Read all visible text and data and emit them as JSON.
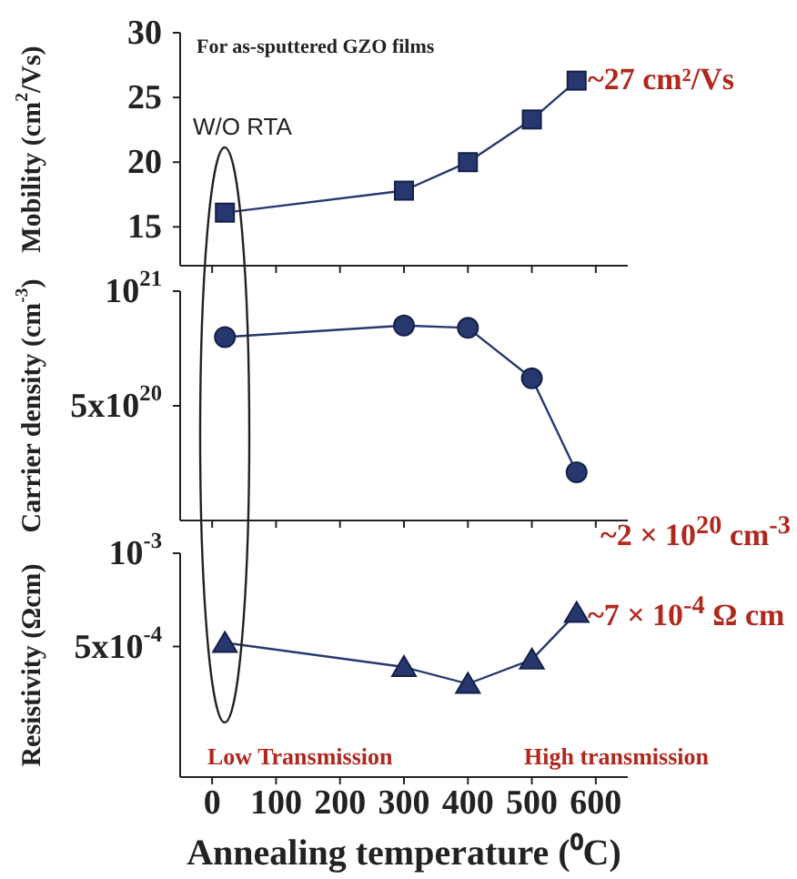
{
  "chart_data": [
    {
      "type": "line",
      "ylabel": "Mobility (cm$^{2}$/Vs)",
      "x": [
        20,
        300,
        400,
        500,
        570
      ],
      "xlim": [
        -50,
        650
      ],
      "xticks": [
        0,
        100,
        200,
        300,
        400,
        500,
        600
      ],
      "ylim": [
        12,
        30
      ],
      "yticks": [
        15,
        20,
        25,
        30
      ],
      "tick_labels": "y",
      "marker": "square",
      "series": [
        {
          "color": "#27386e",
          "values": [
            16.1,
            17.8,
            20,
            23.3,
            26.3
          ]
        }
      ],
      "annotations": [
        "For as-sputtered GZO films",
        "W/O RTA",
        "~27 cm²/Vs"
      ]
    },
    {
      "type": "line",
      "ylabel": "Carrier density (cm$^{-3}$)",
      "x": [
        20,
        300,
        400,
        500,
        570
      ],
      "xlim": [
        -50,
        650
      ],
      "xticks": [
        0,
        100,
        200,
        300,
        400,
        500,
        600
      ],
      "ylim": [
        0,
        1e+21
      ],
      "yticks": [
        {
          "value": 1e+21,
          "label": "10$^{21}$"
        },
        {
          "value": 5e+20,
          "label": "5x10$^{20}$"
        }
      ],
      "tick_labels": "y",
      "marker": "circle",
      "series": [
        {
          "color": "#27386e",
          "values": [
            8e+20,
            8.5e+20,
            8.4e+20,
            6.2e+20,
            2.1e+20
          ]
        }
      ],
      "annotations": [
        "~2 × 10$^{20}$ cm$^{-3}$"
      ]
    },
    {
      "type": "line",
      "ylabel": "Resistivity (Ωcm)",
      "xlabel": "Annealing temperature (⁰C)",
      "x": [
        20,
        300,
        400,
        500,
        570
      ],
      "xlim": [
        -50,
        650
      ],
      "xticks": [
        0,
        100,
        200,
        300,
        400,
        500,
        600
      ],
      "ylim": [
        -0.0002,
        0.001
      ],
      "yticks": [
        {
          "value": 0.001,
          "label": "10$^{-3}$"
        },
        {
          "value": 0.0005,
          "label": "5x10$^{-4}$"
        }
      ],
      "marker": "triangle",
      "series": [
        {
          "color": "#27386e",
          "values": [
            0.00052,
            0.00039,
            0.0003,
            0.00043,
            0.00068
          ]
        }
      ],
      "annotations": [
        "Low Transmission",
        "High transmission",
        "~7 × 10$^{-4}$ Ω cm"
      ]
    }
  ]
}
